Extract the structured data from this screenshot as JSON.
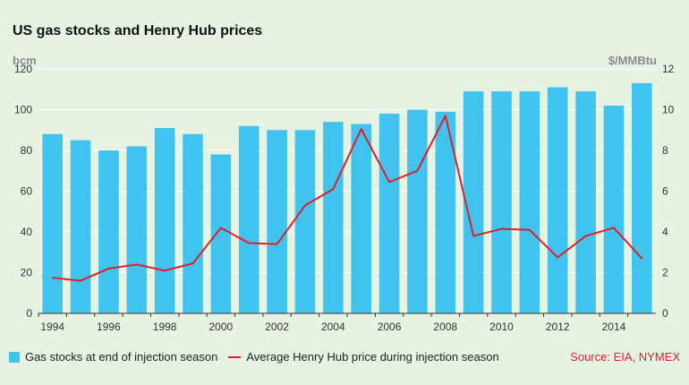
{
  "chart_data": {
    "type": "bar+line",
    "title": "US gas stocks and Henry Hub prices",
    "x": [
      1994,
      1995,
      1996,
      1997,
      1998,
      1999,
      2000,
      2001,
      2002,
      2003,
      2004,
      2005,
      2006,
      2007,
      2008,
      2009,
      2010,
      2011,
      2012,
      2013,
      2014,
      2015
    ],
    "x_tick_labels": [
      "1994",
      "1996",
      "1998",
      "2000",
      "2002",
      "2004",
      "2006",
      "2008",
      "2010",
      "2012",
      "2014"
    ],
    "left_axis": {
      "unit_label": "bcm",
      "ylim": [
        0,
        120
      ],
      "ticks": [
        "0",
        "20",
        "40",
        "60",
        "80",
        "100",
        "120"
      ]
    },
    "right_axis": {
      "unit_label": "$/MMBtu",
      "ylim": [
        0,
        12
      ],
      "ticks": [
        "0",
        "2",
        "4",
        "6",
        "8",
        "10",
        "12"
      ]
    },
    "series": [
      {
        "name": "Gas stocks at end of injection season",
        "kind": "bar",
        "axis": "left",
        "color": "#41c3ef",
        "values": [
          88,
          85,
          80,
          82,
          91,
          88,
          78,
          92,
          90,
          90,
          94,
          93,
          98,
          100,
          99,
          109,
          109,
          109,
          111,
          109,
          102,
          113
        ]
      },
      {
        "name": "Average Henry Hub price during injection season",
        "kind": "line",
        "axis": "right",
        "color": "#e02027",
        "values": [
          1.75,
          1.6,
          2.2,
          2.4,
          2.1,
          2.45,
          4.2,
          3.45,
          3.4,
          5.3,
          6.1,
          9.05,
          6.45,
          7.0,
          9.7,
          3.8,
          4.15,
          4.1,
          2.75,
          3.8,
          4.2,
          2.7
        ]
      }
    ],
    "grid": true,
    "legend_position": "bottom",
    "source": "Source: EIA, NYMEX"
  }
}
